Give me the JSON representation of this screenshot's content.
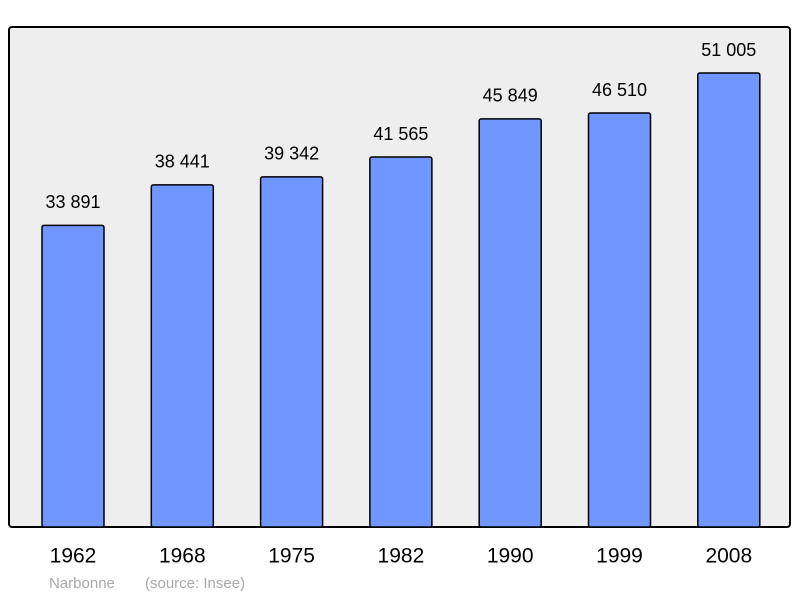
{
  "chart_data": {
    "type": "bar",
    "categories": [
      "1962",
      "1968",
      "1975",
      "1982",
      "1990",
      "1999",
      "2008"
    ],
    "values": [
      33891,
      38441,
      39342,
      41565,
      45849,
      46510,
      51005
    ],
    "value_labels": [
      "33 891",
      "38 441",
      "39 342",
      "41 565",
      "45 849",
      "46 510",
      "51 005"
    ],
    "color": "#7096ff",
    "caption": "Narbonne",
    "source": "(source: Insee)"
  }
}
